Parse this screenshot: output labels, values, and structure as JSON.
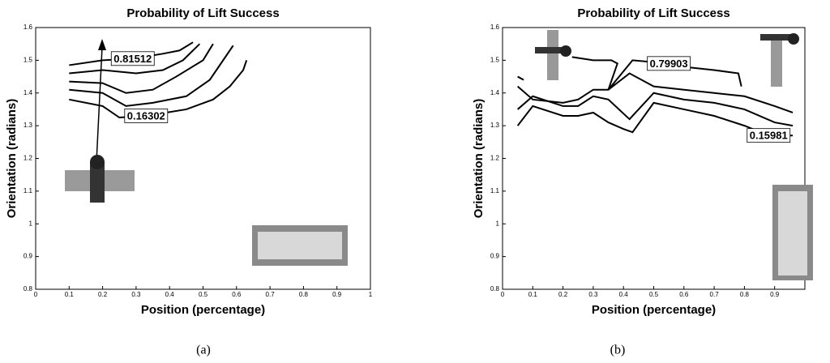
{
  "chart_data": [
    {
      "type": "contour",
      "title": "Probability of Lift Success",
      "xlabel": "Position (percentage)",
      "ylabel": "Orientation (radians)",
      "caption": "(a)",
      "color": "#000000",
      "xlim": [
        0,
        1
      ],
      "ylim": [
        0.8,
        1.6
      ],
      "xticks": [
        0,
        0.1,
        0.2,
        0.3,
        0.4,
        0.5,
        0.6,
        0.7,
        0.8,
        0.9,
        1
      ],
      "yticks": [
        0.8,
        0.9,
        1,
        1.1,
        1.2,
        1.3,
        1.4,
        1.5,
        1.6
      ],
      "series": [
        {
          "level": 0.81512,
          "x": [
            0.1,
            0.2,
            0.29,
            0.38,
            0.43,
            0.47
          ],
          "values": [
            1.485,
            1.5,
            1.505,
            1.52,
            1.53,
            1.555
          ]
        },
        {
          "x": [
            0.1,
            0.2,
            0.3,
            0.38,
            0.44,
            0.49
          ],
          "values": [
            1.46,
            1.47,
            1.46,
            1.47,
            1.5,
            1.55
          ]
        },
        {
          "x": [
            0.1,
            0.2,
            0.27,
            0.35,
            0.42,
            0.5,
            0.53
          ],
          "values": [
            1.435,
            1.43,
            1.4,
            1.41,
            1.45,
            1.5,
            1.55
          ]
        },
        {
          "x": [
            0.1,
            0.2,
            0.27,
            0.35,
            0.45,
            0.52,
            0.56,
            0.59
          ],
          "values": [
            1.41,
            1.4,
            1.36,
            1.37,
            1.39,
            1.44,
            1.5,
            1.545
          ]
        },
        {
          "level": 0.16302,
          "x": [
            0.1,
            0.2,
            0.25,
            0.33,
            0.45,
            0.53,
            0.58,
            0.62,
            0.63
          ],
          "values": [
            1.38,
            1.36,
            1.325,
            1.33,
            1.35,
            1.38,
            1.42,
            1.47,
            1.5
          ]
        }
      ]
    },
    {
      "type": "contour",
      "title": "Probability of Lift Success",
      "xlabel": "Position (percentage)",
      "ylabel": "Orientation (radians)",
      "caption": "(b)",
      "color": "#000000",
      "xlim": [
        0,
        1
      ],
      "ylim": [
        0.8,
        1.6
      ],
      "xticks": [
        0,
        0.1,
        0.2,
        0.3,
        0.4,
        0.5,
        0.6,
        0.7,
        0.8,
        0.9
      ],
      "yticks": [
        0.8,
        0.9,
        1,
        1.1,
        1.2,
        1.3,
        1.4,
        1.5,
        1.6
      ],
      "series": [
        {
          "x": [
            0.05,
            0.07
          ],
          "values": [
            1.45,
            1.44
          ]
        },
        {
          "level": 0.79903,
          "x": [
            0.23,
            0.3,
            0.36,
            0.38,
            0.35,
            0.43,
            0.55,
            0.6,
            0.7,
            0.78,
            0.79
          ],
          "values": [
            1.51,
            1.5,
            1.5,
            1.49,
            1.41,
            1.5,
            1.49,
            1.48,
            1.47,
            1.46,
            1.42
          ]
        },
        {
          "x": [
            0.05,
            0.1,
            0.2,
            0.25,
            0.3,
            0.35,
            0.42,
            0.5,
            0.6,
            0.7,
            0.8,
            0.9,
            0.96
          ],
          "values": [
            1.42,
            1.38,
            1.37,
            1.38,
            1.41,
            1.41,
            1.46,
            1.42,
            1.41,
            1.4,
            1.39,
            1.36,
            1.34
          ]
        },
        {
          "x": [
            0.05,
            0.1,
            0.2,
            0.25,
            0.3,
            0.35,
            0.42,
            0.5,
            0.6,
            0.7,
            0.8,
            0.9,
            0.96
          ],
          "values": [
            1.35,
            1.39,
            1.36,
            1.36,
            1.39,
            1.38,
            1.32,
            1.4,
            1.38,
            1.37,
            1.35,
            1.31,
            1.3
          ]
        },
        {
          "level": 0.15981,
          "x": [
            0.05,
            0.1,
            0.2,
            0.25,
            0.3,
            0.35,
            0.4,
            0.43,
            0.5,
            0.6,
            0.7,
            0.8,
            0.88,
            0.96
          ],
          "values": [
            1.3,
            1.36,
            1.33,
            1.33,
            1.34,
            1.31,
            1.29,
            1.28,
            1.37,
            1.35,
            1.33,
            1.3,
            1.27,
            1.27
          ]
        }
      ]
    }
  ]
}
